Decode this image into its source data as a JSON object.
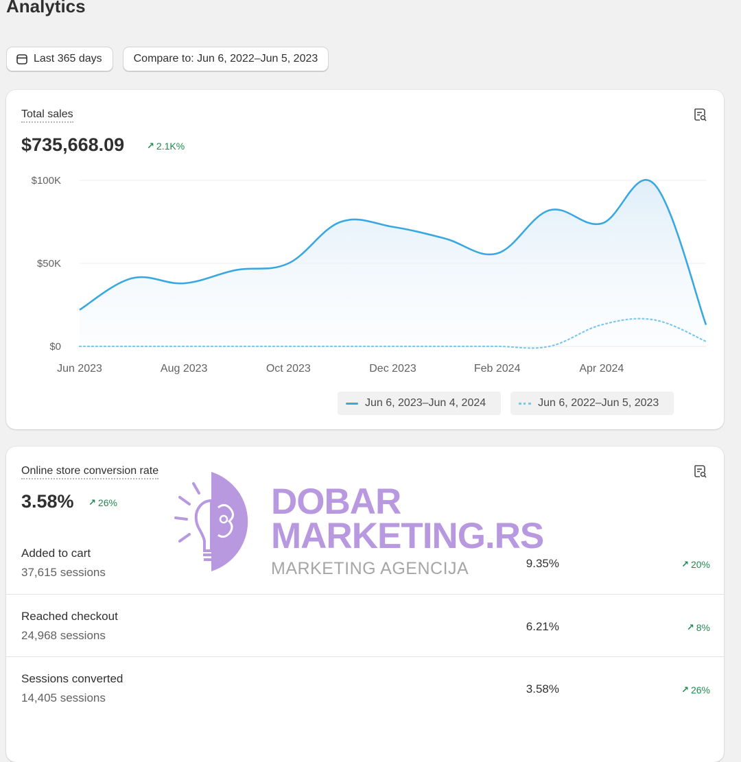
{
  "page": {
    "title": "Analytics"
  },
  "filters": {
    "date_range": {
      "label": "Last 365 days",
      "icon": "calendar-icon"
    },
    "compare": {
      "label": "Compare to: Jun 6, 2022–Jun 5, 2023"
    }
  },
  "total_sales": {
    "label": "Total sales",
    "value": "$735,668.09",
    "delta": "2.1K%",
    "report_icon": "report-icon"
  },
  "chart_data": {
    "type": "line",
    "title": "",
    "xlabel": "",
    "ylabel": "",
    "x_ticks": [
      "Jun 2023",
      "Aug 2023",
      "Oct 2023",
      "Dec 2023",
      "Feb 2024",
      "Apr 2024"
    ],
    "y_ticks": [
      "$100K",
      "$50K",
      "$0"
    ],
    "ylim": [
      0,
      100000
    ],
    "grid": true,
    "legend_position": "bottom-right",
    "x": [
      "2023-06",
      "2023-07",
      "2023-08",
      "2023-09",
      "2023-10",
      "2023-11",
      "2023-12",
      "2024-01",
      "2024-02",
      "2024-03",
      "2024-04",
      "2024-05",
      "2024-06"
    ],
    "series": [
      {
        "name": "Jun 6, 2023–Jun 4, 2024",
        "style": "solid",
        "color": "#3aa8e0",
        "values": [
          22000,
          41000,
          38000,
          46000,
          50000,
          75000,
          72000,
          65000,
          56000,
          82000,
          74000,
          98000,
          13000
        ]
      },
      {
        "name": "Jun 6, 2022–Jun 5, 2023",
        "style": "dotted",
        "color": "#7cc6ee",
        "values": [
          0,
          0,
          0,
          0,
          0,
          0,
          0,
          0,
          0,
          0,
          13000,
          16000,
          3000
        ]
      }
    ]
  },
  "conversion": {
    "label": "Online store conversion rate",
    "value": "3.58%",
    "delta": "26%",
    "rows": [
      {
        "name": "Added to cart",
        "sessions": "37,615 sessions",
        "pct": "9.35%",
        "delta": "20%"
      },
      {
        "name": "Reached checkout",
        "sessions": "24,968 sessions",
        "pct": "6.21%",
        "delta": "8%"
      },
      {
        "name": "Sessions converted",
        "sessions": "14,405 sessions",
        "pct": "3.58%",
        "delta": "26%"
      }
    ]
  },
  "watermark": {
    "line1": "DOBAR",
    "line2": "MARKETING.RS",
    "line3": "MARKETING AGENCIJA",
    "logo_icon": "lightbulb-brain-icon"
  },
  "colors": {
    "accent": "#3aa8e0",
    "positive": "#1e8a4e",
    "watermark": "#b898df"
  }
}
